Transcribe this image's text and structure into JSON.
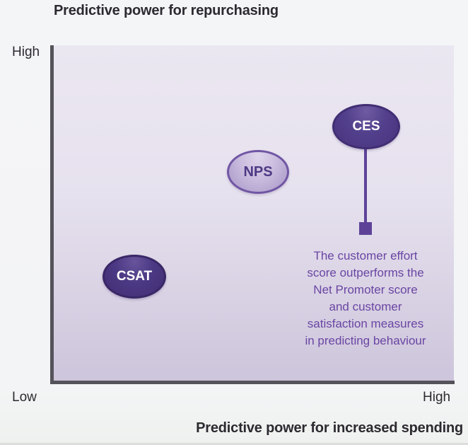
{
  "title": "Predictive power for repurchasing",
  "x_axis_title": "Predictive power for increased spending",
  "axis_labels": {
    "y_high": "High",
    "origin_low": "Low",
    "x_high": "High"
  },
  "bubbles": [
    {
      "label": "CES",
      "fill": "#4d3a85",
      "border": "#412e74",
      "text_color": "#ffffff"
    },
    {
      "label": "NPS",
      "fill": "#bcabd6",
      "border": "#7156a4",
      "text_color": "#4e3984"
    },
    {
      "label": "CSAT",
      "fill": "#46337c",
      "border": "#392766",
      "text_color": "#ffffff"
    }
  ],
  "annotation": {
    "text": "The customer effort\nscore outperforms the\nNet Promoter score\nand customer\nsatisfaction measures\nin predicting behaviour",
    "color": "#6a45a3"
  },
  "colors": {
    "page_background": "#f3f4f6",
    "plot_background_top": "#ebe7f1",
    "plot_background_bottom": "#cdc5db",
    "axis_line": "#55535a",
    "title_text": "#2c2a30",
    "connector_purple": "#5e4298"
  },
  "chart_data": {
    "type": "scatter",
    "title": "Predictive power for repurchasing",
    "xlabel": "Predictive power for increased spending",
    "ylabel": "Predictive power for repurchasing",
    "x_range_labels": [
      "Low",
      "High"
    ],
    "y_range_labels": [
      "Low",
      "High"
    ],
    "grid": false,
    "legend": false,
    "series": [
      {
        "name": "CSAT",
        "x": 0.2,
        "y": 0.31,
        "style": "dark-purple-ellipse"
      },
      {
        "name": "NPS",
        "x": 0.51,
        "y": 0.62,
        "style": "light-purple-ellipse"
      },
      {
        "name": "CES",
        "x": 0.78,
        "y": 0.76,
        "style": "dark-purple-ellipse"
      }
    ],
    "annotations": [
      {
        "text": "The customer effort score outperforms the Net Promoter score and customer satisfaction measures in predicting behaviour",
        "attached_to": "CES",
        "connector": "vertical line with square endpoint"
      }
    ]
  }
}
